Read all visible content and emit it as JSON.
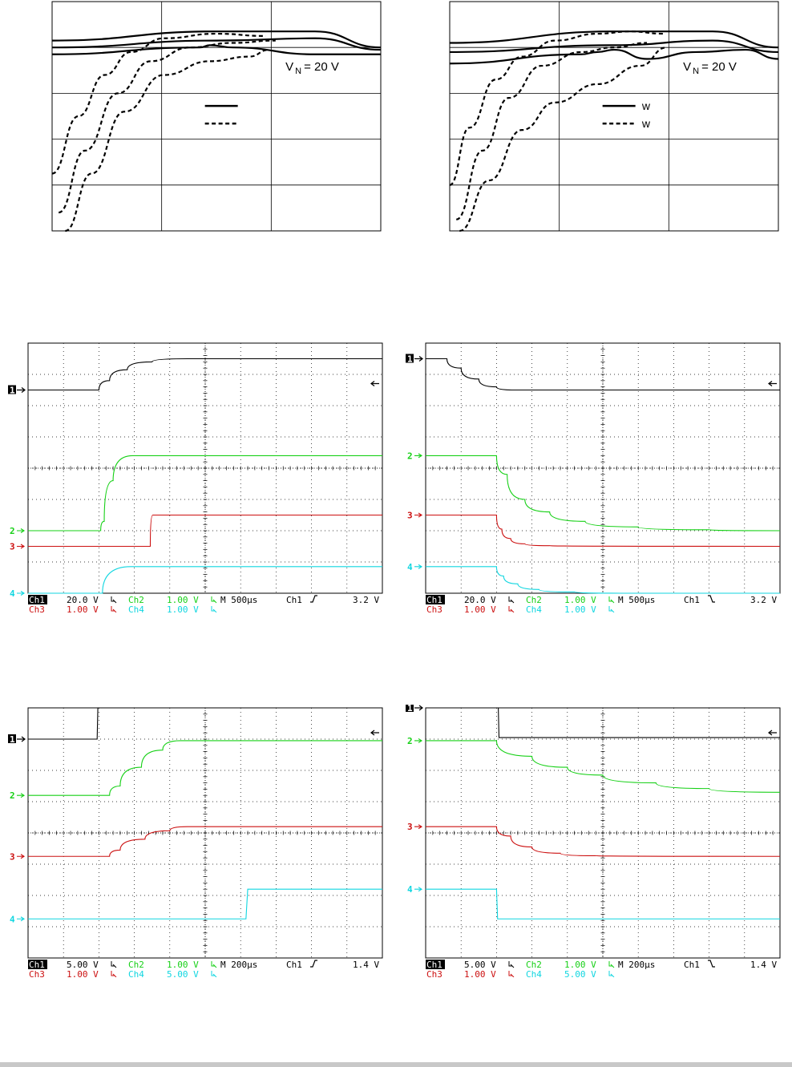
{
  "colors": {
    "ch1": "#000000",
    "ch2": "#16d016",
    "ch3": "#cc1010",
    "ch4": "#10d6e0"
  },
  "chart_data": [
    {
      "type": "line",
      "annotation": "V N = 20 V",
      "annotation_main": "V",
      "annotation_sub": "N",
      "annotation_rest": "= 20 V",
      "legend": [
        {
          "style": "solid",
          "label": ""
        },
        {
          "style": "dashed",
          "label": ""
        }
      ],
      "series": [
        {
          "style": "solid",
          "x": [
            0,
            0.5,
            0.8,
            1.0
          ],
          "y": [
            0.83,
            0.87,
            0.87,
            0.8
          ]
        },
        {
          "style": "solid",
          "x": [
            0,
            0.5,
            0.8,
            1.0
          ],
          "y": [
            0.8,
            0.83,
            0.84,
            0.79
          ]
        },
        {
          "style": "solid",
          "x": [
            0,
            0.45,
            0.48,
            0.55,
            0.8,
            1.0
          ],
          "y": [
            0.77,
            0.8,
            0.81,
            0.8,
            0.77,
            0.77
          ]
        },
        {
          "style": "dashed",
          "x": [
            0.0,
            0.08,
            0.16,
            0.24,
            0.34,
            0.5,
            0.65
          ],
          "y": [
            0.25,
            0.5,
            0.68,
            0.78,
            0.84,
            0.86,
            0.85
          ]
        },
        {
          "style": "dashed",
          "x": [
            0.02,
            0.1,
            0.2,
            0.3,
            0.42,
            0.55,
            0.68
          ],
          "y": [
            0.08,
            0.35,
            0.6,
            0.74,
            0.8,
            0.82,
            0.83
          ]
        },
        {
          "style": "dashed",
          "x": [
            0.04,
            0.12,
            0.22,
            0.34,
            0.48,
            0.6,
            0.66
          ],
          "y": [
            0.0,
            0.25,
            0.52,
            0.68,
            0.74,
            0.76,
            0.79
          ]
        }
      ]
    },
    {
      "type": "line",
      "annotation": "V N = 20 V",
      "annotation_main": "V",
      "annotation_sub": "N",
      "annotation_rest": "= 20 V",
      "legend": [
        {
          "style": "solid",
          "label": "w"
        },
        {
          "style": "dashed",
          "label": "w"
        }
      ],
      "series": [
        {
          "style": "solid",
          "x": [
            0,
            0.5,
            0.8,
            1.0
          ],
          "y": [
            0.82,
            0.87,
            0.87,
            0.8
          ]
        },
        {
          "style": "solid",
          "x": [
            0,
            0.5,
            0.8,
            1.0
          ],
          "y": [
            0.78,
            0.81,
            0.83,
            0.78
          ]
        },
        {
          "style": "solid",
          "x": [
            0,
            0.4,
            0.45,
            0.5,
            0.6,
            0.75,
            0.9,
            1.0
          ],
          "y": [
            0.73,
            0.77,
            0.78,
            0.79,
            0.75,
            0.78,
            0.79,
            0.75
          ]
        },
        {
          "style": "dashed",
          "x": [
            0.0,
            0.06,
            0.14,
            0.22,
            0.32,
            0.45,
            0.55,
            0.65
          ],
          "y": [
            0.2,
            0.45,
            0.66,
            0.76,
            0.83,
            0.86,
            0.87,
            0.86
          ]
        },
        {
          "style": "dashed",
          "x": [
            0.02,
            0.1,
            0.18,
            0.28,
            0.4,
            0.5,
            0.6
          ],
          "y": [
            0.05,
            0.35,
            0.58,
            0.72,
            0.78,
            0.8,
            0.82
          ]
        },
        {
          "style": "dashed",
          "x": [
            0.03,
            0.12,
            0.22,
            0.32,
            0.45,
            0.58,
            0.66
          ],
          "y": [
            0.0,
            0.22,
            0.44,
            0.56,
            0.64,
            0.72,
            0.8
          ]
        }
      ]
    },
    {
      "type": "line",
      "status": {
        "ch1_label": "Ch1",
        "ch1_scale": "20.0 V",
        "ch2_label": "Ch2",
        "ch2_scale": "1.00 V",
        "timebase": "M 500µs",
        "trigger_ch": "Ch1",
        "trigger_edge": "rising",
        "trigger_level": "3.2 V",
        "ch3_label": "Ch3",
        "ch3_scale": "1.00 V",
        "ch4_label": "Ch4",
        "ch4_scale": "1.00 V"
      },
      "channel_markers": [
        {
          "label": "1"
        },
        {
          "label": "2"
        },
        {
          "label": "3"
        },
        {
          "label": "4"
        }
      ],
      "series": [
        {
          "name": "Ch1",
          "channel": 1,
          "x": [
            0,
            2.0,
            2.3,
            2.8,
            3.5,
            4.5,
            5.5,
            10
          ],
          "y": [
            6.5,
            6.5,
            6.8,
            7.15,
            7.4,
            7.5,
            7.5,
            7.5
          ]
        },
        {
          "name": "Ch2",
          "channel": 2,
          "x": [
            0,
            2.05,
            2.15,
            2.4,
            2.95,
            10
          ],
          "y": [
            2.0,
            2.0,
            2.3,
            3.6,
            4.4,
            4.4
          ]
        },
        {
          "name": "Ch3",
          "channel": 3,
          "x": [
            0,
            3.45,
            3.52,
            10
          ],
          "y": [
            1.5,
            1.5,
            2.5,
            2.5
          ]
        },
        {
          "name": "Ch4",
          "channel": 4,
          "x": [
            0,
            2.1,
            2.9,
            10
          ],
          "y": [
            0.0,
            0.0,
            0.85,
            0.85
          ]
        }
      ]
    },
    {
      "type": "line",
      "status": {
        "ch1_label": "Ch1",
        "ch1_scale": "20.0 V",
        "ch2_label": "Ch2",
        "ch2_scale": "1.00 V",
        "timebase": "M 500µs",
        "trigger_ch": "Ch1",
        "trigger_edge": "falling",
        "trigger_level": "3.2 V",
        "ch3_label": "Ch3",
        "ch3_scale": "1.00 V",
        "ch4_label": "Ch4",
        "ch4_scale": "1.00 V"
      },
      "channel_markers": [
        {
          "label": "1"
        },
        {
          "label": "2"
        },
        {
          "label": "3"
        },
        {
          "label": "4"
        }
      ],
      "series": [
        {
          "name": "Ch1",
          "channel": 1,
          "x": [
            0,
            0.6,
            1.0,
            1.5,
            2.0,
            2.5,
            10
          ],
          "y": [
            7.5,
            7.5,
            7.2,
            6.85,
            6.6,
            6.5,
            6.5
          ]
        },
        {
          "name": "Ch2",
          "channel": 2,
          "x": [
            0,
            2.0,
            2.3,
            2.8,
            3.5,
            4.5,
            6.0,
            8.0,
            10
          ],
          "y": [
            4.4,
            4.4,
            3.8,
            3.0,
            2.6,
            2.3,
            2.12,
            2.03,
            2.0
          ]
        },
        {
          "name": "Ch3",
          "channel": 3,
          "x": [
            0,
            2.0,
            2.15,
            2.4,
            2.8,
            3.5,
            10
          ],
          "y": [
            2.5,
            2.5,
            2.05,
            1.75,
            1.58,
            1.52,
            1.5
          ]
        },
        {
          "name": "Ch4",
          "channel": 4,
          "x": [
            0,
            2.0,
            2.2,
            2.6,
            3.2,
            4.2,
            5.5,
            10
          ],
          "y": [
            0.85,
            0.85,
            0.55,
            0.3,
            0.12,
            0.04,
            0.0,
            0.0
          ]
        }
      ]
    },
    {
      "type": "line",
      "status": {
        "ch1_label": "Ch1",
        "ch1_scale": "5.00 V",
        "ch2_label": "Ch2",
        "ch2_scale": "1.00 V",
        "timebase": "M 200µs",
        "trigger_ch": "Ch1",
        "trigger_edge": "rising",
        "trigger_level": "1.4 V",
        "ch3_label": "Ch3",
        "ch3_scale": "1.00 V",
        "ch4_label": "Ch4",
        "ch4_scale": "5.00 V"
      },
      "channel_markers": [
        {
          "label": "1"
        },
        {
          "label": "2"
        },
        {
          "label": "3"
        },
        {
          "label": "4"
        }
      ],
      "series": [
        {
          "name": "Ch1",
          "channel": 1,
          "x": [
            0,
            1.95,
            1.97,
            10
          ],
          "y": [
            7.0,
            7.0,
            8.0,
            8.0
          ]
        },
        {
          "name": "Ch2",
          "channel": 2,
          "x": [
            0,
            2.3,
            2.6,
            3.2,
            3.8,
            4.3,
            10
          ],
          "y": [
            5.2,
            5.2,
            5.5,
            6.1,
            6.65,
            6.95,
            6.95
          ]
        },
        {
          "name": "Ch3",
          "channel": 3,
          "x": [
            0,
            2.3,
            2.6,
            3.3,
            4.0,
            4.5,
            10
          ],
          "y": [
            3.25,
            3.25,
            3.45,
            3.8,
            4.07,
            4.2,
            4.2
          ]
        },
        {
          "name": "Ch4",
          "channel": 4,
          "x": [
            0,
            6.15,
            6.2,
            10
          ],
          "y": [
            1.25,
            1.25,
            2.2,
            2.2
          ]
        }
      ]
    },
    {
      "type": "line",
      "status": {
        "ch1_label": "Ch1",
        "ch1_scale": "5.00 V",
        "ch2_label": "Ch2",
        "ch2_scale": "1.00 V",
        "timebase": "M 200µs",
        "trigger_ch": "Ch1",
        "trigger_edge": "falling",
        "trigger_level": "1.4 V",
        "ch3_label": "Ch3",
        "ch3_scale": "1.00 V",
        "ch4_label": "Ch4",
        "ch4_scale": "5.00 V"
      },
      "channel_markers": [
        {
          "label": "1"
        },
        {
          "label": "2"
        },
        {
          "label": "3"
        },
        {
          "label": "4"
        }
      ],
      "series": [
        {
          "name": "Ch1",
          "channel": 1,
          "x": [
            0,
            2.05,
            2.07,
            10
          ],
          "y": [
            8.0,
            8.0,
            7.05,
            7.05
          ]
        },
        {
          "name": "Ch2",
          "channel": 2,
          "x": [
            0,
            2.0,
            3.0,
            4.0,
            5.0,
            6.5,
            8.0,
            10
          ],
          "y": [
            6.95,
            6.95,
            6.45,
            6.1,
            5.85,
            5.6,
            5.42,
            5.3
          ]
        },
        {
          "name": "Ch3",
          "channel": 3,
          "x": [
            0,
            2.0,
            2.4,
            3.0,
            3.8,
            4.8,
            10
          ],
          "y": [
            4.2,
            4.2,
            3.9,
            3.55,
            3.35,
            3.27,
            3.25
          ]
        },
        {
          "name": "Ch4",
          "channel": 4,
          "x": [
            0,
            2.0,
            2.03,
            10
          ],
          "y": [
            2.2,
            2.2,
            1.25,
            1.25
          ]
        }
      ]
    }
  ]
}
